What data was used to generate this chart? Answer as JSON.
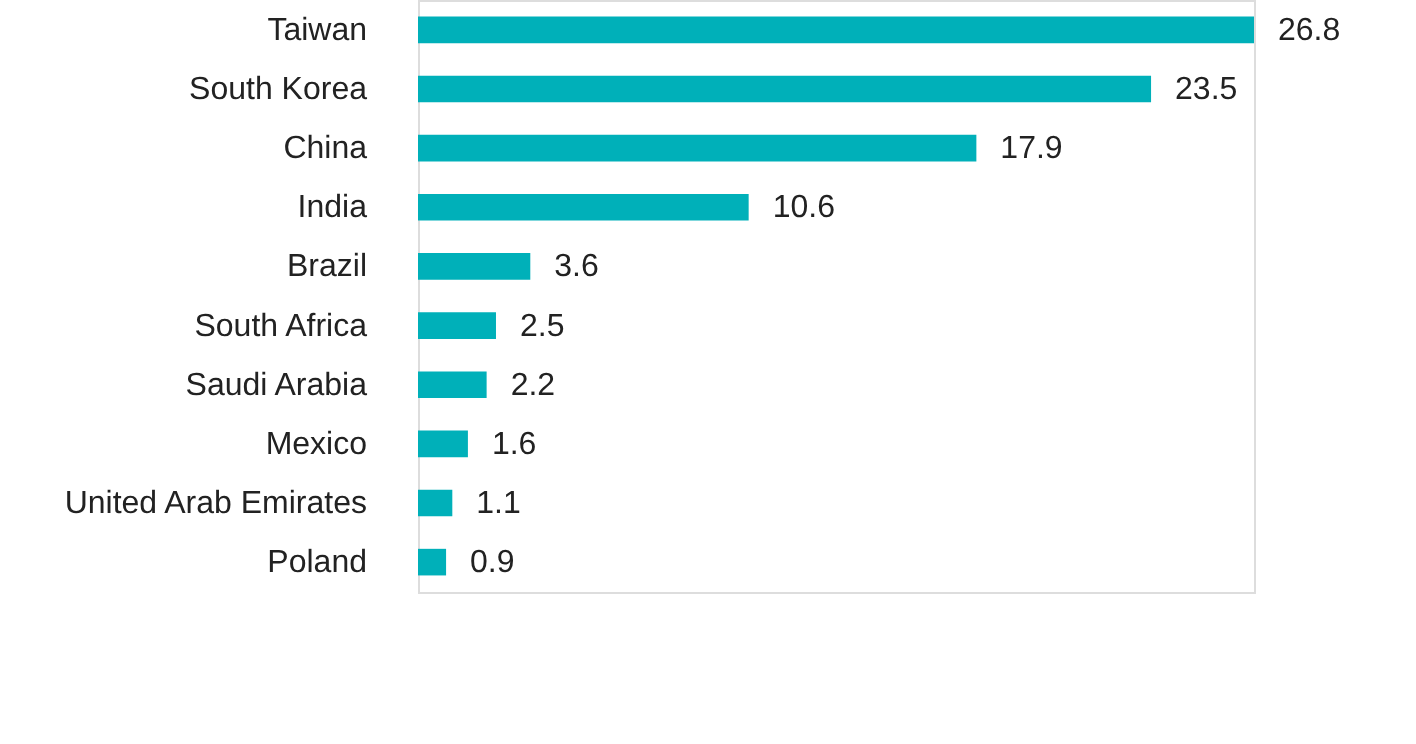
{
  "chart_data": {
    "type": "bar",
    "orientation": "horizontal",
    "categories": [
      "Taiwan",
      "South Korea",
      "China",
      "India",
      "Brazil",
      "South Africa",
      "Saudi Arabia",
      "Mexico",
      "United Arab Emirates",
      "Poland"
    ],
    "values": [
      26.8,
      23.5,
      17.9,
      10.6,
      3.6,
      2.5,
      2.2,
      1.6,
      1.1,
      0.9
    ],
    "color": "#00b0b9",
    "data_labels": true,
    "grid": false
  }
}
